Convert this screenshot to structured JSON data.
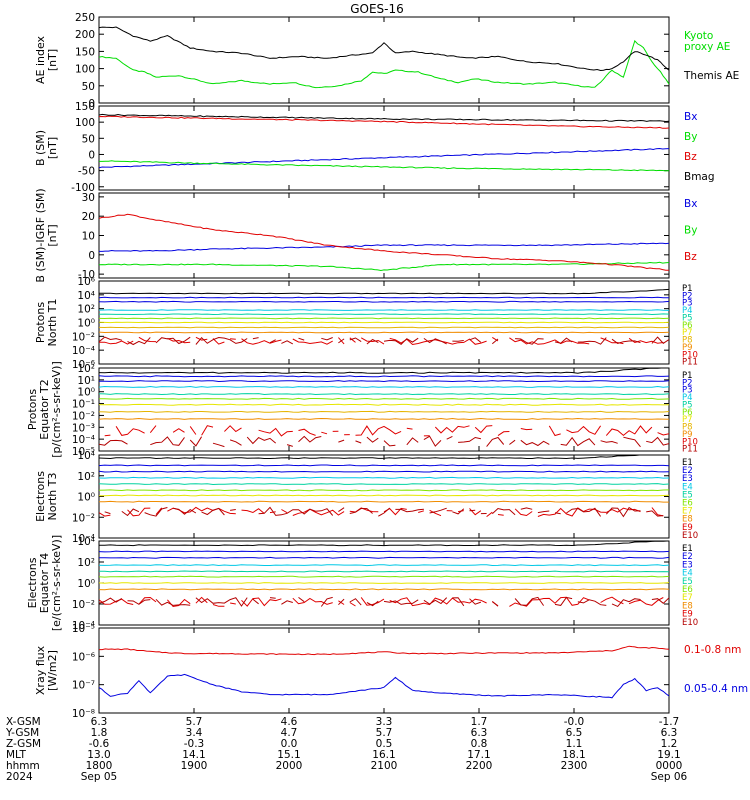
{
  "title": "GOES-16",
  "colors": {
    "black": "#000000",
    "red": "#e00000",
    "green": "#00dd00",
    "blue": "#0000e0",
    "cyan": "#00c8e6",
    "teal": "#00d2a0",
    "ltgreen": "#80e600",
    "yellow": "#e6e600",
    "gold": "#e6b400",
    "orange": "#f08c00",
    "dorange": "#e65000",
    "dkred": "#b40000"
  },
  "chart_data": [
    {
      "type": "line",
      "name": "AE index",
      "ylabel": [
        "AE index",
        "[nT]"
      ],
      "ylim": [
        0,
        250
      ],
      "yticks": [
        "0",
        "50",
        "100",
        "150",
        "200",
        "250"
      ],
      "series": [
        {
          "name": "Kyoto proxy AE",
          "label_lines": [
            "Kyoto",
            "proxy AE"
          ],
          "color": "green",
          "values": [
            [
              0,
              135
            ],
            [
              0.03,
              130
            ],
            [
              0.06,
              95
            ],
            [
              0.08,
              90
            ],
            [
              0.1,
              75
            ],
            [
              0.14,
              80
            ],
            [
              0.2,
              55
            ],
            [
              0.25,
              65
            ],
            [
              0.3,
              55
            ],
            [
              0.34,
              60
            ],
            [
              0.38,
              45
            ],
            [
              0.42,
              50
            ],
            [
              0.46,
              65
            ],
            [
              0.48,
              90
            ],
            [
              0.5,
              85
            ],
            [
              0.52,
              95
            ],
            [
              0.56,
              90
            ],
            [
              0.6,
              70
            ],
            [
              0.63,
              60
            ],
            [
              0.66,
              70
            ],
            [
              0.7,
              60
            ],
            [
              0.75,
              55
            ],
            [
              0.8,
              60
            ],
            [
              0.84,
              50
            ],
            [
              0.87,
              45
            ],
            [
              0.88,
              60
            ],
            [
              0.89,
              80
            ],
            [
              0.9,
              95
            ],
            [
              0.92,
              75
            ],
            [
              0.94,
              180
            ],
            [
              0.955,
              160
            ],
            [
              0.97,
              120
            ],
            [
              0.985,
              90
            ],
            [
              1,
              55
            ]
          ]
        },
        {
          "name": "Themis AE",
          "label_lines": [
            "Themis AE"
          ],
          "color": "black",
          "values": [
            [
              0,
              220
            ],
            [
              0.03,
              220
            ],
            [
              0.06,
              195
            ],
            [
              0.09,
              180
            ],
            [
              0.12,
              195
            ],
            [
              0.16,
              160
            ],
            [
              0.2,
              150
            ],
            [
              0.25,
              145
            ],
            [
              0.3,
              130
            ],
            [
              0.35,
              135
            ],
            [
              0.4,
              130
            ],
            [
              0.45,
              140
            ],
            [
              0.48,
              145
            ],
            [
              0.5,
              175
            ],
            [
              0.52,
              145
            ],
            [
              0.55,
              150
            ],
            [
              0.6,
              140
            ],
            [
              0.65,
              130
            ],
            [
              0.7,
              135
            ],
            [
              0.75,
              120
            ],
            [
              0.8,
              115
            ],
            [
              0.85,
              100
            ],
            [
              0.88,
              95
            ],
            [
              0.9,
              100
            ],
            [
              0.92,
              120
            ],
            [
              0.94,
              150
            ],
            [
              0.96,
              140
            ],
            [
              0.98,
              125
            ],
            [
              1,
              95
            ]
          ]
        }
      ]
    },
    {
      "type": "line",
      "name": "B (SM)",
      "ylabel": [
        "B (SM)",
        "[nT]"
      ],
      "ylim": [
        -110,
        150
      ],
      "yticks": [
        "-100",
        "-50",
        "0",
        "50",
        "100",
        "150"
      ],
      "series": [
        {
          "name": "Bx",
          "label_lines": [
            "Bx"
          ],
          "color": "blue",
          "values": [
            [
              0,
              -40
            ],
            [
              0.5,
              -10
            ],
            [
              1,
              18
            ]
          ]
        },
        {
          "name": "By",
          "label_lines": [
            "By"
          ],
          "color": "green",
          "values": [
            [
              0,
              -20
            ],
            [
              0.3,
              -32
            ],
            [
              0.6,
              -42
            ],
            [
              1,
              -50
            ]
          ]
        },
        {
          "name": "Bz",
          "label_lines": [
            "Bz"
          ],
          "color": "red",
          "values": [
            [
              0,
              118
            ],
            [
              0.5,
              102
            ],
            [
              0.8,
              88
            ],
            [
              1,
              82
            ]
          ]
        },
        {
          "name": "Bmag",
          "label_lines": [
            "Bmag"
          ],
          "color": "black",
          "values": [
            [
              0,
              123
            ],
            [
              0.5,
              110
            ],
            [
              1,
              103
            ]
          ]
        }
      ]
    },
    {
      "type": "line",
      "name": "B (SM)-IGRF (SM)",
      "ylabel": [
        "B (SM)-IGRF (SM)",
        "[nT]"
      ],
      "ylim": [
        -12,
        32
      ],
      "yticks": [
        "-10",
        "0",
        "10",
        "20",
        "30"
      ],
      "series": [
        {
          "name": "Bx",
          "label_lines": [
            "Bx"
          ],
          "color": "blue",
          "values": [
            [
              0,
              2
            ],
            [
              0.1,
              2
            ],
            [
              0.2,
              3
            ],
            [
              0.4,
              4
            ],
            [
              0.5,
              5
            ],
            [
              0.6,
              5
            ],
            [
              0.8,
              5
            ],
            [
              1,
              6
            ]
          ]
        },
        {
          "name": "By",
          "label_lines": [
            "By"
          ],
          "color": "green",
          "values": [
            [
              0,
              -5
            ],
            [
              0.2,
              -5
            ],
            [
              0.4,
              -6
            ],
            [
              0.5,
              -8
            ],
            [
              0.6,
              -5
            ],
            [
              0.8,
              -5
            ],
            [
              1,
              -4
            ]
          ]
        },
        {
          "name": "Bz",
          "label_lines": [
            "Bz"
          ],
          "color": "red",
          "values": [
            [
              0,
              19
            ],
            [
              0.05,
              21
            ],
            [
              0.1,
              18
            ],
            [
              0.2,
              13
            ],
            [
              0.3,
              10
            ],
            [
              0.4,
              5
            ],
            [
              0.5,
              2
            ],
            [
              0.6,
              0
            ],
            [
              0.7,
              -2
            ],
            [
              0.8,
              -3
            ],
            [
              0.9,
              -5
            ],
            [
              1,
              -8
            ]
          ]
        }
      ]
    },
    {
      "type": "line",
      "name": "Protons North T1",
      "ylabel": [
        "Protons",
        "North T1"
      ],
      "log": true,
      "ylim": [
        -6,
        4
      ],
      "yticks": [
        "10⁶",
        "10⁴",
        "10²",
        "10⁰",
        "10⁻²",
        "10⁻⁴",
        "10⁻⁶"
      ],
      "channels": [
        "P1",
        "P2",
        "P3",
        "P4",
        "P5",
        "P6",
        "P7",
        "P8",
        "P9",
        "P10",
        "P11"
      ],
      "levels": [
        2.5,
        2.0,
        1.5,
        0.5,
        0.0,
        -0.5,
        -1.0,
        -1.6,
        -2.2,
        -3.2,
        -3.2
      ],
      "channel_colors": [
        "black",
        "blue",
        "blue",
        "cyan",
        "teal",
        "ltgreen",
        "yellow",
        "gold",
        "orange",
        "red",
        "dkred"
      ]
    },
    {
      "type": "line",
      "name": "Protons Equator T2",
      "ylabel": [
        "Protons",
        "Equator T2",
        "[p/(cm²-s-sr-keV)]"
      ],
      "log": true,
      "ylim": [
        -5,
        2
      ],
      "yticks": [
        "10²",
        "10¹",
        "10⁰",
        "10⁻¹",
        "10⁻²",
        "10⁻³",
        "10⁻⁴",
        "10⁻⁵"
      ],
      "channels": [
        "P1",
        "P2",
        "P3",
        "P4",
        "P5",
        "P6",
        "P7",
        "P8",
        "P9",
        "P10",
        "P11"
      ],
      "levels": [
        1.6,
        1.3,
        0.9,
        0.4,
        -0.2,
        -0.6,
        -1.1,
        -1.7,
        -2.3,
        -3.3,
        -4.2
      ],
      "channel_colors": [
        "black",
        "blue",
        "blue",
        "cyan",
        "teal",
        "ltgreen",
        "yellow",
        "gold",
        "orange",
        "red",
        "dkred"
      ]
    },
    {
      "type": "line",
      "name": "Electrons North T3",
      "ylabel": [
        "Electrons",
        "North T3"
      ],
      "log": true,
      "ylim": [
        -4,
        4
      ],
      "yticks": [
        "10⁴",
        "10²",
        "10⁰",
        "10⁻²",
        "10⁻⁴"
      ],
      "channels": [
        "E1",
        "E2",
        "E3",
        "E4",
        "E5",
        "E6",
        "E7",
        "E8",
        "E9",
        "E10"
      ],
      "levels": [
        3.7,
        3.0,
        2.4,
        1.8,
        1.2,
        0.6,
        0.1,
        -0.5,
        -1.5,
        -1.5
      ],
      "channel_colors": [
        "black",
        "blue",
        "blue",
        "cyan",
        "teal",
        "ltgreen",
        "yellow",
        "orange",
        "red",
        "dkred"
      ]
    },
    {
      "type": "line",
      "name": "Electrons Equator T4",
      "ylabel": [
        "Electrons",
        "Equator T4",
        "[e/(cm²-s-sr-keV)]"
      ],
      "log": true,
      "ylim": [
        -4,
        4
      ],
      "yticks": [
        "10⁴",
        "10²",
        "10⁰",
        "10⁻²",
        "10⁻⁴"
      ],
      "channels": [
        "E1",
        "E2",
        "E3",
        "E4",
        "E5",
        "E6",
        "E7",
        "E8",
        "E9",
        "E10"
      ],
      "levels": [
        3.6,
        3.0,
        2.4,
        1.7,
        1.1,
        0.6,
        0.0,
        -0.6,
        -1.8,
        -1.8
      ],
      "channel_colors": [
        "black",
        "blue",
        "blue",
        "cyan",
        "teal",
        "ltgreen",
        "yellow",
        "orange",
        "red",
        "dkred"
      ]
    },
    {
      "type": "line",
      "name": "Xray flux",
      "ylabel": [
        "Xray flux",
        "[W/m2]"
      ],
      "log": true,
      "ylim": [
        -8,
        -5
      ],
      "yticks": [
        "10⁻⁵",
        "10⁻⁶",
        "10⁻⁷",
        "10⁻⁸"
      ],
      "series": [
        {
          "name": "0.1-0.8 nm",
          "label_lines": [
            "0.1-0.8 nm"
          ],
          "color": "red",
          "values": [
            [
              0,
              -5.75
            ],
            [
              0.05,
              -5.75
            ],
            [
              0.1,
              -5.85
            ],
            [
              0.15,
              -5.9
            ],
            [
              0.2,
              -5.9
            ],
            [
              0.3,
              -5.92
            ],
            [
              0.4,
              -5.93
            ],
            [
              0.5,
              -5.85
            ],
            [
              0.55,
              -5.9
            ],
            [
              0.6,
              -5.9
            ],
            [
              0.7,
              -5.88
            ],
            [
              0.8,
              -5.88
            ],
            [
              0.9,
              -5.8
            ],
            [
              0.93,
              -5.65
            ],
            [
              0.95,
              -5.7
            ],
            [
              0.97,
              -5.7
            ],
            [
              1,
              -5.75
            ]
          ]
        },
        {
          "name": "0.05-0.4 nm",
          "label_lines": [
            "0.05-0.4 nm"
          ],
          "color": "blue",
          "values": [
            [
              0,
              -7.1
            ],
            [
              0.02,
              -7.4
            ],
            [
              0.05,
              -7.3
            ],
            [
              0.07,
              -6.85
            ],
            [
              0.09,
              -7.3
            ],
            [
              0.12,
              -6.7
            ],
            [
              0.15,
              -6.65
            ],
            [
              0.2,
              -7.0
            ],
            [
              0.25,
              -7.25
            ],
            [
              0.3,
              -7.35
            ],
            [
              0.4,
              -7.35
            ],
            [
              0.5,
              -7.1
            ],
            [
              0.52,
              -6.75
            ],
            [
              0.55,
              -7.2
            ],
            [
              0.6,
              -7.3
            ],
            [
              0.7,
              -7.4
            ],
            [
              0.8,
              -7.35
            ],
            [
              0.9,
              -7.45
            ],
            [
              0.92,
              -7.0
            ],
            [
              0.94,
              -6.8
            ],
            [
              0.96,
              -7.2
            ],
            [
              0.98,
              -7.1
            ],
            [
              1,
              -7.4
            ]
          ]
        }
      ]
    }
  ],
  "ephemeris": {
    "row_labels": [
      "X-GSM",
      "Y-GSM",
      "Z-GSM",
      "MLT",
      "hhmm",
      "2024"
    ],
    "columns": [
      [
        "6.3",
        "1.8",
        "-0.6",
        "13.0",
        "1800",
        "Sep 05"
      ],
      [
        "5.7",
        "3.4",
        "-0.3",
        "14.1",
        "1900",
        ""
      ],
      [
        "4.6",
        "4.7",
        "0.0",
        "15.1",
        "2000",
        ""
      ],
      [
        "3.3",
        "5.7",
        "0.5",
        "16.1",
        "2100",
        ""
      ],
      [
        "1.7",
        "6.3",
        "0.8",
        "17.1",
        "2200",
        ""
      ],
      [
        "-0.0",
        "6.5",
        "1.1",
        "18.1",
        "2300",
        ""
      ],
      [
        "-1.7",
        "6.3",
        "1.2",
        "19.1",
        "0000",
        "Sep 06"
      ]
    ]
  }
}
